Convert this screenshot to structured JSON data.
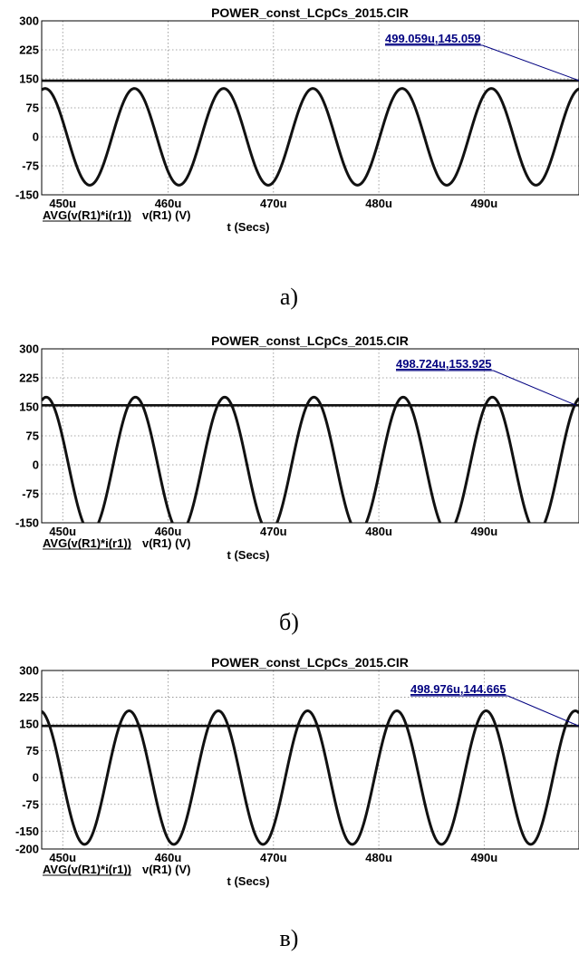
{
  "chart_data": [
    {
      "type": "line",
      "caption": "а)",
      "title": "POWER_const_LCpCs_2015.CIR",
      "xlabel": "t (Secs)",
      "x_ticks": [
        "450u",
        "460u",
        "470u",
        "480u",
        "490u"
      ],
      "x_tick_values": [
        450,
        460,
        470,
        480,
        490
      ],
      "xlim": [
        448,
        499
      ],
      "y_ticks": [
        "300",
        "225",
        "150",
        "75",
        "0",
        "-75",
        "-150"
      ],
      "ylim": [
        -150,
        300
      ],
      "grid": true,
      "legend": [
        {
          "label": "AVG(v(R1)*i(r1))",
          "underlined": true
        },
        {
          "label": "v(R1) (V)",
          "underlined": false
        }
      ],
      "cursor_label": "499.059u,145.059",
      "cursor_x": 499.059,
      "cursor_y": 145.059,
      "series": [
        {
          "name": "AVG(v(R1)*i(r1))",
          "kind": "constant",
          "value": 145.059
        },
        {
          "name": "v(R1) (V)",
          "kind": "sine",
          "amplitude": 125,
          "period": 8.47,
          "peak_at": 456.8
        }
      ]
    },
    {
      "type": "line",
      "caption": "б)",
      "title": "POWER_const_LCpCs_2015.CIR",
      "xlabel": "t (Secs)",
      "x_ticks": [
        "450u",
        "460u",
        "470u",
        "480u",
        "490u"
      ],
      "x_tick_values": [
        450,
        460,
        470,
        480,
        490
      ],
      "xlim": [
        448,
        499
      ],
      "y_ticks": [
        "300",
        "225",
        "150",
        "75",
        "0",
        "-75",
        "-150"
      ],
      "ylim": [
        -150,
        300
      ],
      "grid": true,
      "legend": [
        {
          "label": "AVG(v(R1)*i(r1))",
          "underlined": true
        },
        {
          "label": "v(R1) (V)",
          "underlined": false
        }
      ],
      "cursor_label": "498.724u,153.925",
      "cursor_x": 498.724,
      "cursor_y": 153.925,
      "series": [
        {
          "name": "AVG(v(R1)*i(r1))",
          "kind": "constant",
          "value": 153.925
        },
        {
          "name": "v(R1) (V)",
          "kind": "sine",
          "amplitude": 175,
          "period": 8.47,
          "peak_at": 456.9
        }
      ]
    },
    {
      "type": "line",
      "caption": "в)",
      "title": "POWER_const_LCpCs_2015.CIR",
      "xlabel": "t (Secs)",
      "x_ticks": [
        "450u",
        "460u",
        "470u",
        "480u",
        "490u"
      ],
      "x_tick_values": [
        450,
        460,
        470,
        480,
        490
      ],
      "xlim": [
        448,
        499
      ],
      "y_ticks": [
        "300",
        "225",
        "150",
        "75",
        "0",
        "-75",
        "-150",
        "-200"
      ],
      "ylim": [
        -200,
        300
      ],
      "grid": true,
      "legend": [
        {
          "label": "AVG(v(R1)*i(r1))",
          "underlined": true
        },
        {
          "label": "v(R1) (V)",
          "underlined": false
        }
      ],
      "cursor_label": "498.976u,144.665",
      "cursor_x": 498.976,
      "cursor_y": 144.665,
      "series": [
        {
          "name": "AVG(v(R1)*i(r1))",
          "kind": "constant",
          "value": 144.665
        },
        {
          "name": "v(R1) (V)",
          "kind": "sine",
          "amplitude": 187,
          "period": 8.47,
          "peak_at": 456.3
        }
      ]
    }
  ]
}
